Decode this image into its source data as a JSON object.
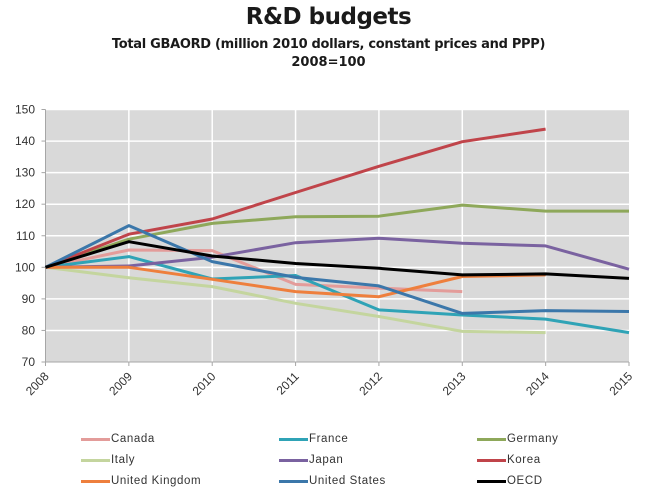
{
  "chart_data": {
    "type": "line",
    "title": "R&D budgets",
    "subtitle": "Total GBAORD (million 2010 dollars, constant prices and PPP)",
    "subtitle2": "2008=100",
    "xlabel": "",
    "ylabel": "",
    "x": [
      "2008",
      "2009",
      "2010",
      "2011",
      "2012",
      "2013",
      "2014",
      "2015"
    ],
    "ylim": [
      70,
      150
    ],
    "yticks": [
      "70",
      "80",
      "90",
      "100",
      "110",
      "120",
      "130",
      "140",
      "150"
    ],
    "grid": true,
    "legend_position": "bottom",
    "series": [
      {
        "name": "Canada",
        "color": "#e39c9a",
        "values": [
          100,
          105.5,
          105.3,
          94.6,
          93.4,
          92.3,
          null,
          null
        ]
      },
      {
        "name": "France",
        "color": "#2fa3b6",
        "values": [
          100,
          103.4,
          96.3,
          97.4,
          86.5,
          84.9,
          83.6,
          79.3
        ]
      },
      {
        "name": "Germany",
        "color": "#8ea85a",
        "values": [
          100,
          108.9,
          113.9,
          116.0,
          116.2,
          119.7,
          117.8,
          117.8
        ]
      },
      {
        "name": "Italy",
        "color": "#c4d59e",
        "values": [
          100,
          96.7,
          93.9,
          88.6,
          84.4,
          79.7,
          79.3,
          null
        ]
      },
      {
        "name": "Japan",
        "color": "#7a62a0",
        "values": [
          100,
          100.4,
          103.2,
          107.8,
          109.2,
          107.6,
          106.8,
          99.4
        ]
      },
      {
        "name": "Korea",
        "color": "#c0444a",
        "values": [
          100,
          110.5,
          115.3,
          123.7,
          132.0,
          139.8,
          143.8,
          null
        ]
      },
      {
        "name": "United Kingdom",
        "color": "#ee7f3d",
        "values": [
          100,
          100.0,
          96.2,
          92.3,
          90.7,
          97.1,
          97.6,
          null
        ]
      },
      {
        "name": "United States",
        "color": "#3b77aa",
        "values": [
          100,
          113.2,
          101.8,
          96.8,
          94.1,
          85.4,
          86.3,
          86.0
        ]
      },
      {
        "name": "OECD",
        "color": "#000000",
        "values": [
          100,
          108.1,
          103.6,
          101.2,
          99.7,
          97.6,
          97.9,
          96.5
        ]
      }
    ]
  }
}
